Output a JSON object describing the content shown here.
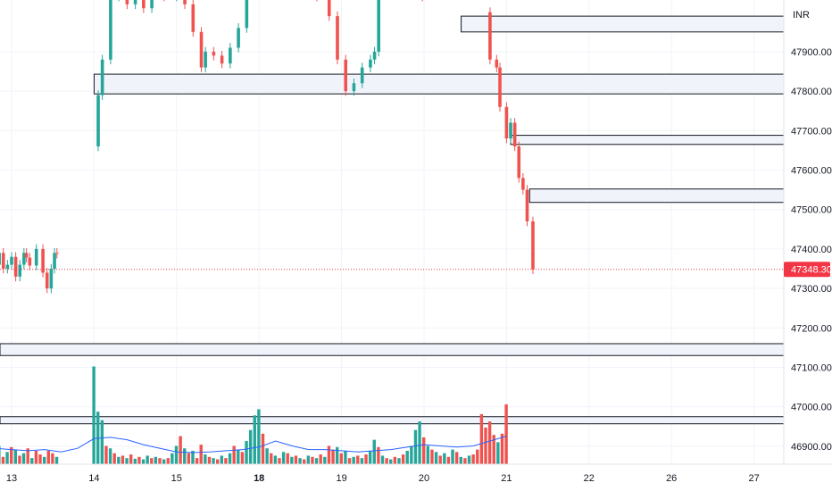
{
  "chart_data": {
    "type": "candlestick",
    "currency": "INR",
    "ylim": [
      46850,
      48080
    ],
    "y_ticks": [
      46900,
      47000,
      47100,
      47200,
      47300,
      47400,
      47500,
      47600,
      47700,
      47800,
      47900
    ],
    "y_tick_labels": [
      "46900.00",
      "47000.00",
      "47100.00",
      "47200.00",
      "47300.00",
      "47400.00",
      "47500.00",
      "47600.00",
      "47700.00",
      "47800.00",
      "47900.00"
    ],
    "x_ticks": [
      {
        "label": "13",
        "day": 13,
        "bold": false
      },
      {
        "label": "14",
        "day": 14,
        "bold": false
      },
      {
        "label": "15",
        "day": 15,
        "bold": false
      },
      {
        "label": "18",
        "day": 16,
        "bold": true
      },
      {
        "label": "19",
        "day": 17,
        "bold": false
      },
      {
        "label": "20",
        "day": 18,
        "bold": false
      },
      {
        "label": "21",
        "day": 19,
        "bold": false
      },
      {
        "label": "22",
        "day": 20,
        "bold": false
      },
      {
        "label": "26",
        "day": 21,
        "bold": false
      },
      {
        "label": "27",
        "day": 22,
        "bold": false
      }
    ],
    "current_price": 47348.3,
    "current_price_label": "47348.30",
    "colors": {
      "up": "#26a69a",
      "down": "#ef5350",
      "ma": "#2962ff",
      "zone_fill": "#f0f3fa",
      "zone_stroke": "#131722",
      "grid": "#f0f3fa",
      "current": "#f23645"
    },
    "zones": [
      {
        "start_day": 18.45,
        "low": 47950,
        "high": 47990
      },
      {
        "start_day": 14.0,
        "low": 47793,
        "high": 47843
      },
      {
        "start_day": 19.05,
        "low": 47665,
        "high": 47688
      },
      {
        "start_day": 19.28,
        "low": 47518,
        "high": 47552
      },
      {
        "start_day": 12.0,
        "low": 47130,
        "high": 47160
      },
      {
        "start_day": 12.0,
        "low": 46957,
        "high": 46975
      }
    ],
    "price_series": [
      [
        12.0,
        47330
      ],
      [
        12.05,
        47360
      ],
      [
        12.1,
        47300
      ],
      [
        12.15,
        47310
      ],
      [
        12.2,
        47250
      ],
      [
        12.25,
        47180
      ],
      [
        12.3,
        47160
      ],
      [
        12.35,
        47130
      ],
      [
        12.4,
        47200
      ],
      [
        12.45,
        47240
      ],
      [
        12.5,
        47250
      ],
      [
        12.55,
        47230
      ],
      [
        12.6,
        47220
      ],
      [
        12.65,
        47230
      ],
      [
        12.7,
        47250
      ],
      [
        12.75,
        47300
      ],
      [
        12.8,
        47360
      ],
      [
        12.85,
        47390
      ],
      [
        12.9,
        47350
      ],
      [
        12.95,
        47360
      ],
      [
        13.0,
        47380
      ],
      [
        13.05,
        47330
      ],
      [
        13.1,
        47360
      ],
      [
        13.15,
        47390
      ],
      [
        13.18,
        47378
      ],
      [
        13.22,
        47358
      ],
      [
        13.3,
        47400
      ],
      [
        13.38,
        47340
      ],
      [
        13.43,
        47300
      ],
      [
        13.48,
        47350
      ],
      [
        13.52,
        47390
      ],
      [
        13.55,
        47388
      ],
      [
        14.0,
        47660
      ],
      [
        14.05,
        47790
      ],
      [
        14.1,
        47880
      ],
      [
        14.2,
        48040
      ],
      [
        14.3,
        48060
      ],
      [
        14.4,
        48020
      ],
      [
        14.5,
        48060
      ],
      [
        14.6,
        48010
      ],
      [
        14.7,
        48050
      ],
      [
        14.85,
        48040
      ],
      [
        15.0,
        48060
      ],
      [
        15.1,
        48020
      ],
      [
        15.2,
        47950
      ],
      [
        15.3,
        47860
      ],
      [
        15.35,
        47900
      ],
      [
        15.45,
        47890
      ],
      [
        15.55,
        47870
      ],
      [
        15.65,
        47910
      ],
      [
        15.75,
        47960
      ],
      [
        15.85,
        48050
      ],
      [
        15.95,
        48080
      ],
      [
        16.1,
        48070
      ],
      [
        16.25,
        48060
      ],
      [
        16.4,
        48050
      ],
      [
        16.55,
        48060
      ],
      [
        16.7,
        48040
      ],
      [
        16.85,
        47990
      ],
      [
        16.95,
        47880
      ],
      [
        17.05,
        47800
      ],
      [
        17.15,
        47820
      ],
      [
        17.25,
        47860
      ],
      [
        17.35,
        47880
      ],
      [
        17.4,
        47900
      ],
      [
        17.45,
        48070
      ],
      [
        17.6,
        48080
      ],
      [
        17.75,
        48070
      ],
      [
        17.9,
        48060
      ],
      [
        17.98,
        48040
      ],
      [
        18.7,
        48000
      ],
      [
        18.8,
        47880
      ],
      [
        18.88,
        47860
      ],
      [
        18.92,
        47760
      ],
      [
        19.0,
        47680
      ],
      [
        19.05,
        47720
      ],
      [
        19.1,
        47660
      ],
      [
        19.15,
        47580
      ],
      [
        19.2,
        47550
      ],
      [
        19.25,
        47470
      ],
      [
        19.32,
        47348.3
      ]
    ],
    "volume": {
      "ylim": [
        0,
        190
      ],
      "bars": [
        [
          12.0,
          28,
          "down"
        ],
        [
          12.05,
          42,
          "down"
        ],
        [
          12.1,
          30,
          "up"
        ],
        [
          12.15,
          18,
          "down"
        ],
        [
          12.2,
          10,
          "up"
        ],
        [
          12.25,
          36,
          "down"
        ],
        [
          12.3,
          14,
          "up"
        ],
        [
          12.35,
          8,
          "up"
        ],
        [
          12.4,
          22,
          "down"
        ],
        [
          12.45,
          12,
          "up"
        ],
        [
          12.5,
          9,
          "down"
        ],
        [
          12.55,
          15,
          "up"
        ],
        [
          12.6,
          10,
          "down"
        ],
        [
          12.65,
          12,
          "up"
        ],
        [
          12.7,
          8,
          "down"
        ],
        [
          12.75,
          36,
          "up"
        ],
        [
          12.8,
          16,
          "down"
        ],
        [
          12.85,
          30,
          "up"
        ],
        [
          12.9,
          12,
          "down"
        ],
        [
          12.95,
          20,
          "up"
        ],
        [
          13.0,
          28,
          "down"
        ],
        [
          13.05,
          24,
          "up"
        ],
        [
          13.1,
          14,
          "down"
        ],
        [
          13.15,
          18,
          "up"
        ],
        [
          13.2,
          26,
          "down"
        ],
        [
          13.25,
          10,
          "up"
        ],
        [
          13.3,
          22,
          "down"
        ],
        [
          13.35,
          16,
          "down"
        ],
        [
          13.4,
          12,
          "up"
        ],
        [
          13.45,
          22,
          "down"
        ],
        [
          13.5,
          18,
          "down"
        ],
        [
          13.55,
          12,
          "up"
        ],
        [
          14.0,
          160,
          "up"
        ],
        [
          14.05,
          86,
          "up"
        ],
        [
          14.1,
          72,
          "up"
        ],
        [
          14.15,
          30,
          "down"
        ],
        [
          14.2,
          26,
          "up"
        ],
        [
          14.25,
          18,
          "down"
        ],
        [
          14.3,
          12,
          "up"
        ],
        [
          14.35,
          14,
          "down"
        ],
        [
          14.4,
          10,
          "up"
        ],
        [
          14.45,
          16,
          "down"
        ],
        [
          14.5,
          9,
          "up"
        ],
        [
          14.55,
          12,
          "down"
        ],
        [
          14.6,
          8,
          "up"
        ],
        [
          14.65,
          14,
          "up"
        ],
        [
          14.7,
          10,
          "down"
        ],
        [
          14.75,
          12,
          "up"
        ],
        [
          14.8,
          10,
          "down"
        ],
        [
          14.85,
          8,
          "up"
        ],
        [
          14.9,
          10,
          "down"
        ],
        [
          14.95,
          18,
          "up"
        ],
        [
          15.0,
          30,
          "up"
        ],
        [
          15.05,
          46,
          "down"
        ],
        [
          15.1,
          26,
          "up"
        ],
        [
          15.15,
          18,
          "down"
        ],
        [
          15.2,
          22,
          "up"
        ],
        [
          15.25,
          10,
          "down"
        ],
        [
          15.3,
          32,
          "down"
        ],
        [
          15.35,
          16,
          "up"
        ],
        [
          15.4,
          12,
          "down"
        ],
        [
          15.45,
          10,
          "up"
        ],
        [
          15.5,
          8,
          "down"
        ],
        [
          15.55,
          14,
          "up"
        ],
        [
          15.6,
          10,
          "down"
        ],
        [
          15.65,
          18,
          "up"
        ],
        [
          15.7,
          30,
          "down"
        ],
        [
          15.75,
          24,
          "up"
        ],
        [
          15.8,
          20,
          "down"
        ],
        [
          15.85,
          38,
          "up"
        ],
        [
          15.9,
          56,
          "up"
        ],
        [
          15.95,
          80,
          "up"
        ],
        [
          16.0,
          90,
          "up"
        ],
        [
          16.05,
          50,
          "down"
        ],
        [
          16.1,
          26,
          "up"
        ],
        [
          16.15,
          18,
          "down"
        ],
        [
          16.2,
          14,
          "up"
        ],
        [
          16.25,
          10,
          "down"
        ],
        [
          16.3,
          20,
          "up"
        ],
        [
          16.35,
          18,
          "down"
        ],
        [
          16.4,
          12,
          "up"
        ],
        [
          16.45,
          14,
          "down"
        ],
        [
          16.5,
          10,
          "up"
        ],
        [
          16.55,
          8,
          "down"
        ],
        [
          16.6,
          14,
          "up"
        ],
        [
          16.65,
          12,
          "down"
        ],
        [
          16.7,
          10,
          "up"
        ],
        [
          16.75,
          16,
          "down"
        ],
        [
          16.8,
          12,
          "up"
        ],
        [
          16.85,
          30,
          "down"
        ],
        [
          16.9,
          24,
          "down"
        ],
        [
          16.95,
          28,
          "up"
        ],
        [
          17.0,
          18,
          "down"
        ],
        [
          17.05,
          22,
          "up"
        ],
        [
          17.1,
          10,
          "down"
        ],
        [
          17.15,
          12,
          "up"
        ],
        [
          17.2,
          14,
          "down"
        ],
        [
          17.25,
          10,
          "up"
        ],
        [
          17.3,
          16,
          "down"
        ],
        [
          17.35,
          22,
          "up"
        ],
        [
          17.4,
          40,
          "up"
        ],
        [
          17.45,
          28,
          "down"
        ],
        [
          17.5,
          14,
          "up"
        ],
        [
          17.55,
          10,
          "down"
        ],
        [
          17.6,
          8,
          "up"
        ],
        [
          17.65,
          12,
          "down"
        ],
        [
          17.7,
          10,
          "up"
        ],
        [
          17.75,
          16,
          "down"
        ],
        [
          17.8,
          22,
          "up"
        ],
        [
          17.85,
          30,
          "up"
        ],
        [
          17.9,
          56,
          "up"
        ],
        [
          17.95,
          70,
          "up"
        ],
        [
          18.0,
          44,
          "down"
        ],
        [
          18.05,
          30,
          "up"
        ],
        [
          18.1,
          24,
          "down"
        ],
        [
          18.15,
          20,
          "up"
        ],
        [
          18.2,
          14,
          "down"
        ],
        [
          18.25,
          18,
          "up"
        ],
        [
          18.3,
          12,
          "down"
        ],
        [
          18.35,
          24,
          "up"
        ],
        [
          18.4,
          20,
          "down"
        ],
        [
          18.45,
          12,
          "up"
        ],
        [
          18.5,
          10,
          "down"
        ],
        [
          18.55,
          14,
          "up"
        ],
        [
          18.6,
          16,
          "down"
        ],
        [
          18.65,
          24,
          "down"
        ],
        [
          18.7,
          82,
          "down"
        ],
        [
          18.75,
          60,
          "down"
        ],
        [
          18.8,
          70,
          "down"
        ],
        [
          18.85,
          48,
          "down"
        ],
        [
          18.9,
          36,
          "up"
        ],
        [
          18.95,
          50,
          "down"
        ],
        [
          19.0,
          98,
          "down"
        ]
      ],
      "ma": [
        [
          12.0,
          22
        ],
        [
          12.2,
          25
        ],
        [
          12.4,
          30
        ],
        [
          12.6,
          28
        ],
        [
          12.8,
          26
        ],
        [
          13.0,
          24
        ],
        [
          13.2,
          22
        ],
        [
          13.4,
          24
        ],
        [
          13.6,
          20
        ],
        [
          13.8,
          26
        ],
        [
          14.0,
          42
        ],
        [
          14.2,
          44
        ],
        [
          14.4,
          40
        ],
        [
          14.6,
          32
        ],
        [
          14.8,
          26
        ],
        [
          15.0,
          20
        ],
        [
          15.2,
          19
        ],
        [
          15.4,
          20
        ],
        [
          15.6,
          22
        ],
        [
          15.8,
          24
        ],
        [
          16.0,
          28
        ],
        [
          16.2,
          38
        ],
        [
          16.4,
          30
        ],
        [
          16.6,
          24
        ],
        [
          16.8,
          24
        ],
        [
          17.0,
          22
        ],
        [
          17.2,
          20
        ],
        [
          17.4,
          22
        ],
        [
          17.6,
          24
        ],
        [
          17.8,
          28
        ],
        [
          18.0,
          32
        ],
        [
          18.2,
          30
        ],
        [
          18.4,
          28
        ],
        [
          18.6,
          30
        ],
        [
          18.8,
          38
        ],
        [
          19.0,
          46
        ]
      ]
    }
  }
}
